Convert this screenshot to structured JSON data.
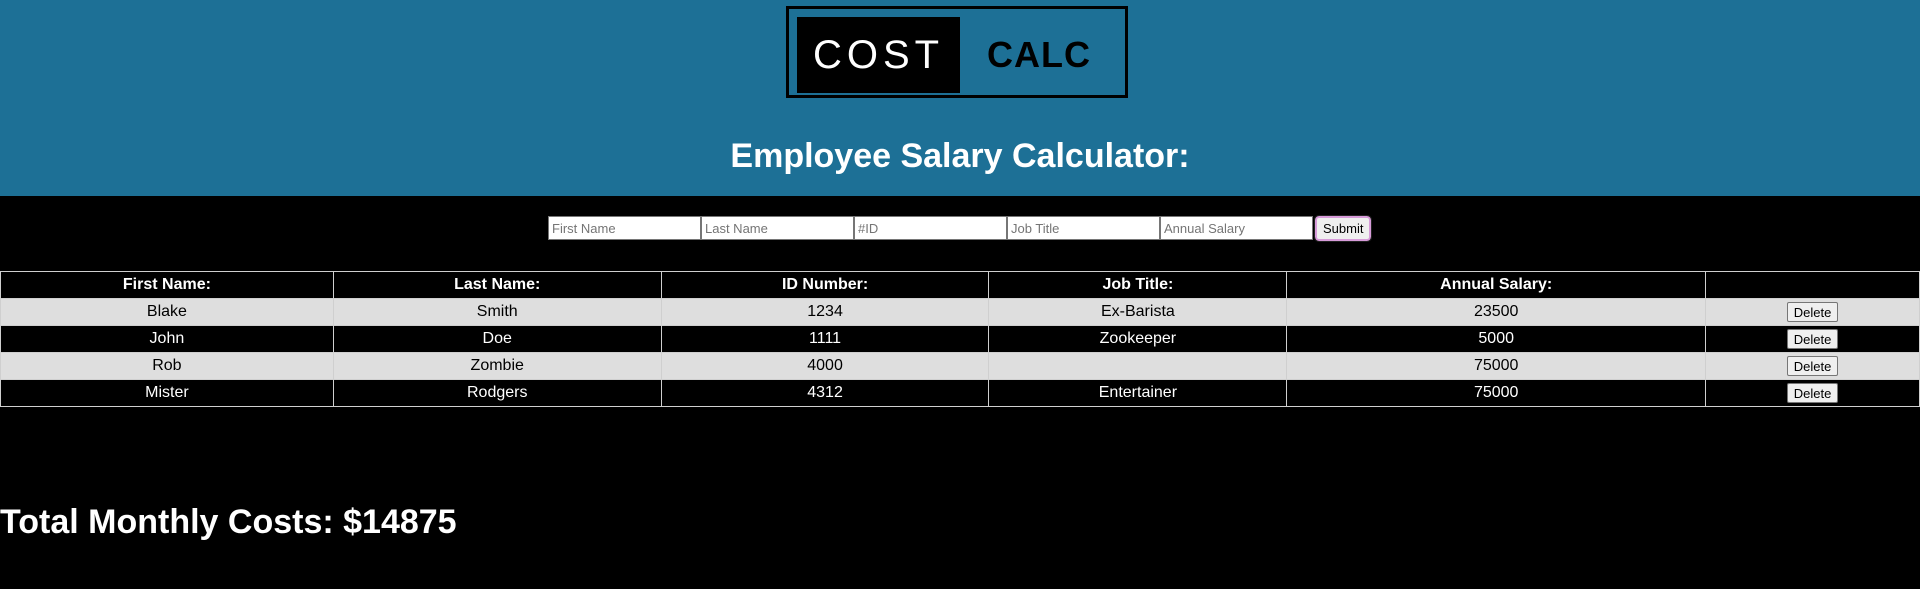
{
  "header": {
    "logo_left": "COST",
    "logo_right": "CALC",
    "title": "Employee Salary Calculator:",
    "background_color": "#1d7096"
  },
  "form": {
    "first_name_placeholder": "First Name",
    "last_name_placeholder": "Last Name",
    "id_placeholder": "#ID",
    "job_title_placeholder": "Job Title",
    "salary_placeholder": "Annual Salary",
    "submit_label": "Submit"
  },
  "table": {
    "headers": [
      "First Name:",
      "Last Name:",
      "ID Number:",
      "Job Title:",
      "Annual Salary:",
      ""
    ],
    "delete_label": "Delete",
    "rows": [
      {
        "first": "Blake",
        "last": "Smith",
        "id": "1234",
        "title": "Ex-Barista",
        "salary": "23500"
      },
      {
        "first": "John",
        "last": "Doe",
        "id": "1111",
        "title": "Zookeeper",
        "salary": "5000"
      },
      {
        "first": "Rob",
        "last": "Zombie",
        "id": "4000",
        "title": "",
        "salary": "75000"
      },
      {
        "first": "Mister",
        "last": "Rodgers",
        "id": "4312",
        "title": "Entertainer",
        "salary": "75000"
      }
    ]
  },
  "footer": {
    "total_label": "Total Monthly Costs: $14875"
  }
}
